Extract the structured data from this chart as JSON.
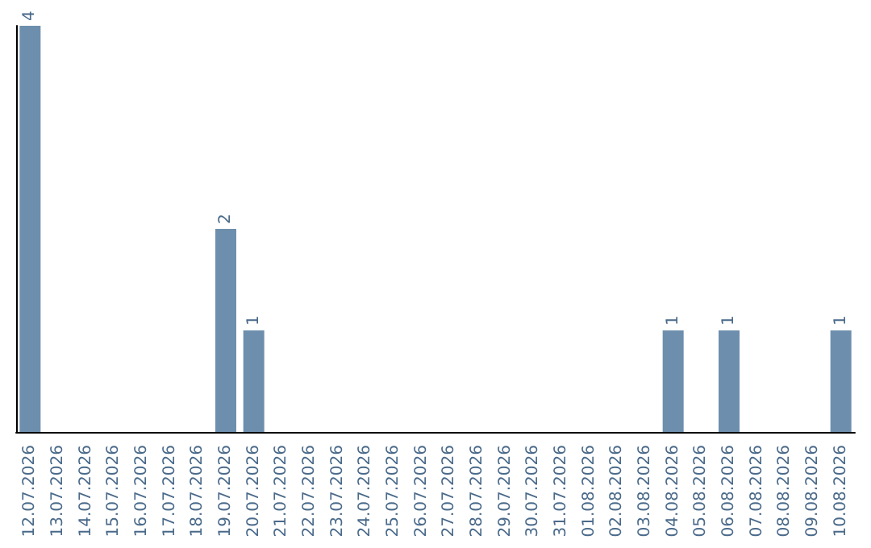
{
  "chart_data": {
    "type": "bar",
    "categories": [
      "12.07.2026",
      "13.07.2026",
      "14.07.2026",
      "15.07.2026",
      "16.07.2026",
      "17.07.2026",
      "18.07.2026",
      "19.07.2026",
      "20.07.2026",
      "21.07.2026",
      "22.07.2026",
      "23.07.2026",
      "24.07.2026",
      "25.07.2026",
      "26.07.2026",
      "27.07.2026",
      "28.07.2026",
      "29.07.2026",
      "30.07.2026",
      "31.07.2026",
      "01.08.2026",
      "02.08.2026",
      "03.08.2026",
      "04.08.2026",
      "05.08.2026",
      "06.08.2026",
      "07.08.2026",
      "08.08.2026",
      "09.08.2026",
      "10.08.2026"
    ],
    "values": [
      4,
      0,
      0,
      0,
      0,
      0,
      0,
      2,
      1,
      0,
      0,
      0,
      0,
      0,
      0,
      0,
      0,
      0,
      0,
      0,
      0,
      0,
      0,
      1,
      0,
      1,
      0,
      0,
      0,
      1
    ],
    "value_labels": [
      "4",
      null,
      null,
      null,
      null,
      null,
      null,
      "2",
      "1",
      null,
      null,
      null,
      null,
      null,
      null,
      null,
      null,
      null,
      null,
      null,
      null,
      null,
      null,
      "1",
      null,
      "1",
      null,
      null,
      null,
      "1"
    ],
    "color": "#6d8fad",
    "grid": false
  }
}
